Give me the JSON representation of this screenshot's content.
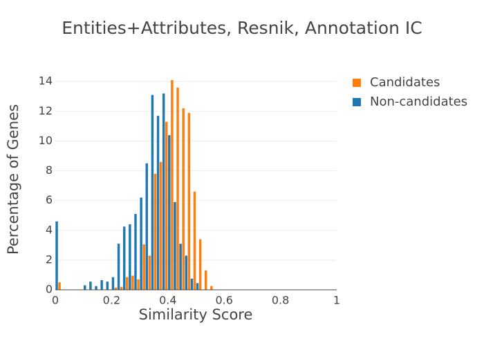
{
  "chart_data": {
    "type": "histogram",
    "title": "Entities+Attributes, Resnik, Annotation IC",
    "x_label": "Similarity Score",
    "y_label": "Percentage of Genes",
    "bins": [
      0,
      0.02,
      0.04,
      0.06,
      0.08,
      0.1,
      0.12,
      0.14,
      0.16,
      0.18,
      0.2,
      0.22,
      0.24,
      0.26,
      0.28,
      0.3,
      0.32,
      0.34,
      0.36,
      0.38,
      0.4,
      0.42,
      0.44,
      0.46,
      0.48,
      0.5,
      0.52,
      0.54,
      0.56,
      0.58,
      0.6,
      0.62,
      0.64,
      0.66,
      0.68,
      0.7,
      0.72,
      0.74,
      0.76,
      0.78,
      0.8,
      0.82,
      0.84,
      0.86,
      0.88,
      0.9,
      0.92,
      0.94,
      0.96,
      0.98,
      1
    ],
    "series": [
      {
        "name": "Candidates",
        "color": "#ff7f0e",
        "values": [
          0.5,
          0,
          0,
          0,
          0,
          0,
          0,
          0,
          0,
          0,
          0.15,
          0.2,
          0.85,
          0.95,
          0.7,
          3.05,
          2.3,
          7.8,
          8.6,
          11.3,
          14.1,
          13.6,
          12.2,
          11.9,
          6.6,
          3.4,
          1.3,
          0.25,
          0,
          0,
          0,
          0,
          0,
          0,
          0,
          0,
          0,
          0,
          0,
          0,
          0,
          0,
          0,
          0,
          0,
          0,
          0,
          0,
          0,
          0
        ]
      },
      {
        "name": "Non-candidates",
        "color": "#1f77b4",
        "values": [
          4.6,
          0,
          0,
          0,
          0,
          0.3,
          0.55,
          0.25,
          0.65,
          0.55,
          0.85,
          3.1,
          4.25,
          4.4,
          5.1,
          6.2,
          8.5,
          13.1,
          11.7,
          13.2,
          10.4,
          5.9,
          3.1,
          2.3,
          0.75,
          0.45,
          0,
          0,
          0,
          0,
          0,
          0,
          0,
          0,
          0,
          0,
          0,
          0,
          0,
          0,
          0,
          0,
          0,
          0,
          0,
          0,
          0,
          0,
          0,
          0
        ]
      }
    ],
    "xlim": [
      0,
      1
    ],
    "xticks": [
      0,
      0.2,
      0.4,
      0.6,
      0.8,
      1
    ],
    "ylim": [
      0,
      14.8
    ],
    "yticks": [
      0,
      2,
      4,
      6,
      8,
      10,
      12,
      14
    ],
    "grid": true,
    "legend": "top-right"
  }
}
